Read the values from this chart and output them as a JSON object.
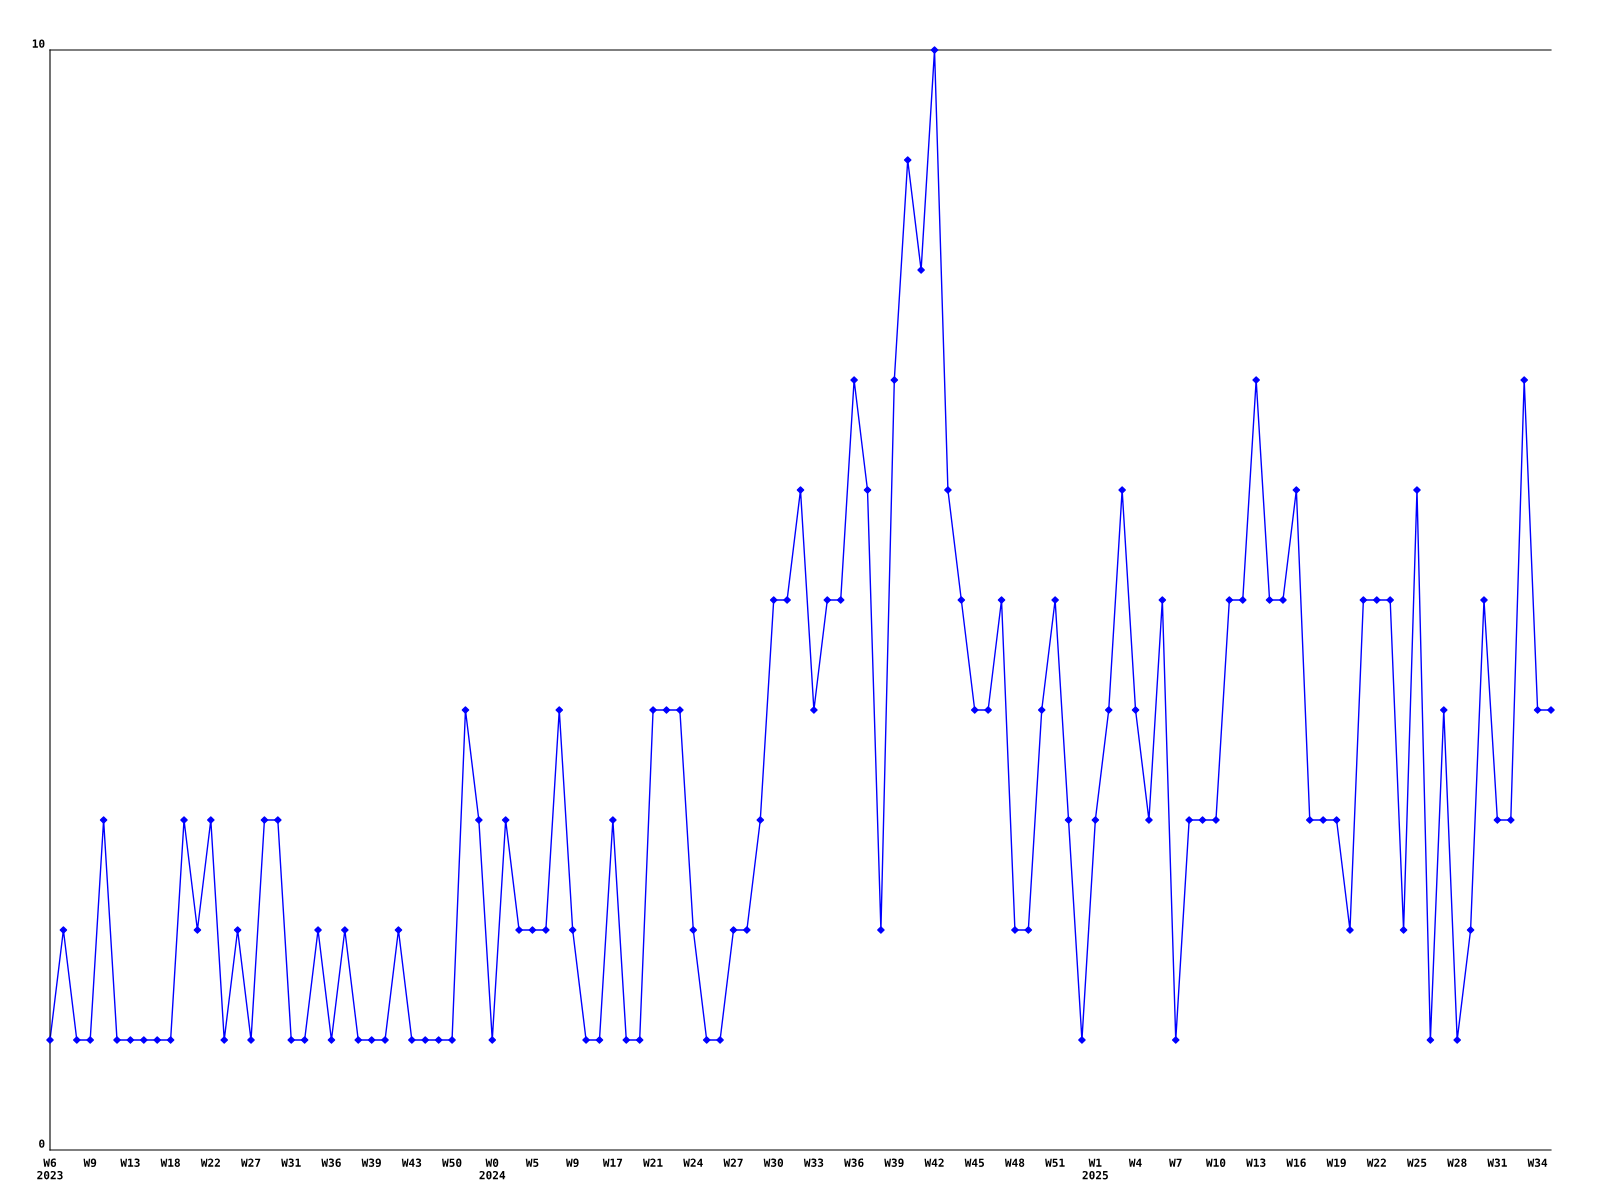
{
  "chart_data": {
    "type": "line",
    "categories": [
      "W6\n2023",
      null,
      null,
      "W9",
      null,
      null,
      "W13",
      null,
      null,
      "W18",
      null,
      null,
      "W22",
      null,
      null,
      "W27",
      null,
      null,
      "W31",
      null,
      null,
      "W36",
      null,
      null,
      "W39",
      null,
      null,
      "W43",
      null,
      null,
      "W50",
      null,
      null,
      "W0\n2024",
      null,
      null,
      "W5",
      null,
      null,
      "W9",
      null,
      null,
      "W17",
      null,
      null,
      "W21",
      null,
      null,
      "W24",
      null,
      null,
      "W27",
      null,
      null,
      "W30",
      null,
      null,
      "W33",
      null,
      null,
      "W36",
      null,
      null,
      "W39",
      null,
      null,
      "W42",
      null,
      null,
      "W45",
      null,
      null,
      "W48",
      null,
      null,
      "W51",
      null,
      null,
      "W1\n2025",
      null,
      null,
      "W4",
      null,
      null,
      "W7",
      null,
      null,
      "W10",
      null,
      null,
      "W13",
      null,
      null,
      "W16",
      null,
      null,
      "W19",
      null,
      null,
      "W22",
      null,
      null,
      "W25",
      null,
      null,
      "W28",
      null,
      null,
      "W31",
      null,
      null,
      "W34",
      null
    ],
    "series": [
      {
        "color": "#0000ff",
        "values": [
          1,
          2,
          1,
          1,
          3,
          1,
          1,
          1,
          1,
          1,
          3,
          2,
          3,
          1,
          2,
          1,
          3,
          3,
          1,
          1,
          2,
          1,
          2,
          1,
          1,
          1,
          2,
          1,
          1,
          1,
          1,
          4,
          3,
          1,
          3,
          2,
          2,
          2,
          4,
          2,
          1,
          1,
          3,
          1,
          1,
          4,
          4,
          4,
          2,
          1,
          1,
          2,
          2,
          3,
          5,
          5,
          6,
          4,
          5,
          5,
          7,
          6,
          2,
          7,
          9,
          8,
          10,
          6,
          5,
          4,
          4,
          5,
          2,
          2,
          4,
          5,
          3,
          1,
          3,
          4,
          6,
          4,
          3,
          5,
          1,
          3,
          3,
          3,
          5,
          5,
          7,
          5,
          5,
          6,
          3,
          3,
          3,
          2,
          5,
          5,
          5,
          2,
          6,
          1,
          4,
          1,
          2,
          5,
          3,
          3,
          7,
          4,
          4
        ]
      }
    ],
    "ylim": [
      0,
      10
    ],
    "yticks": [
      0,
      10
    ],
    "grid": false,
    "legend": false,
    "marker": "diamond",
    "line_style": "solid"
  }
}
